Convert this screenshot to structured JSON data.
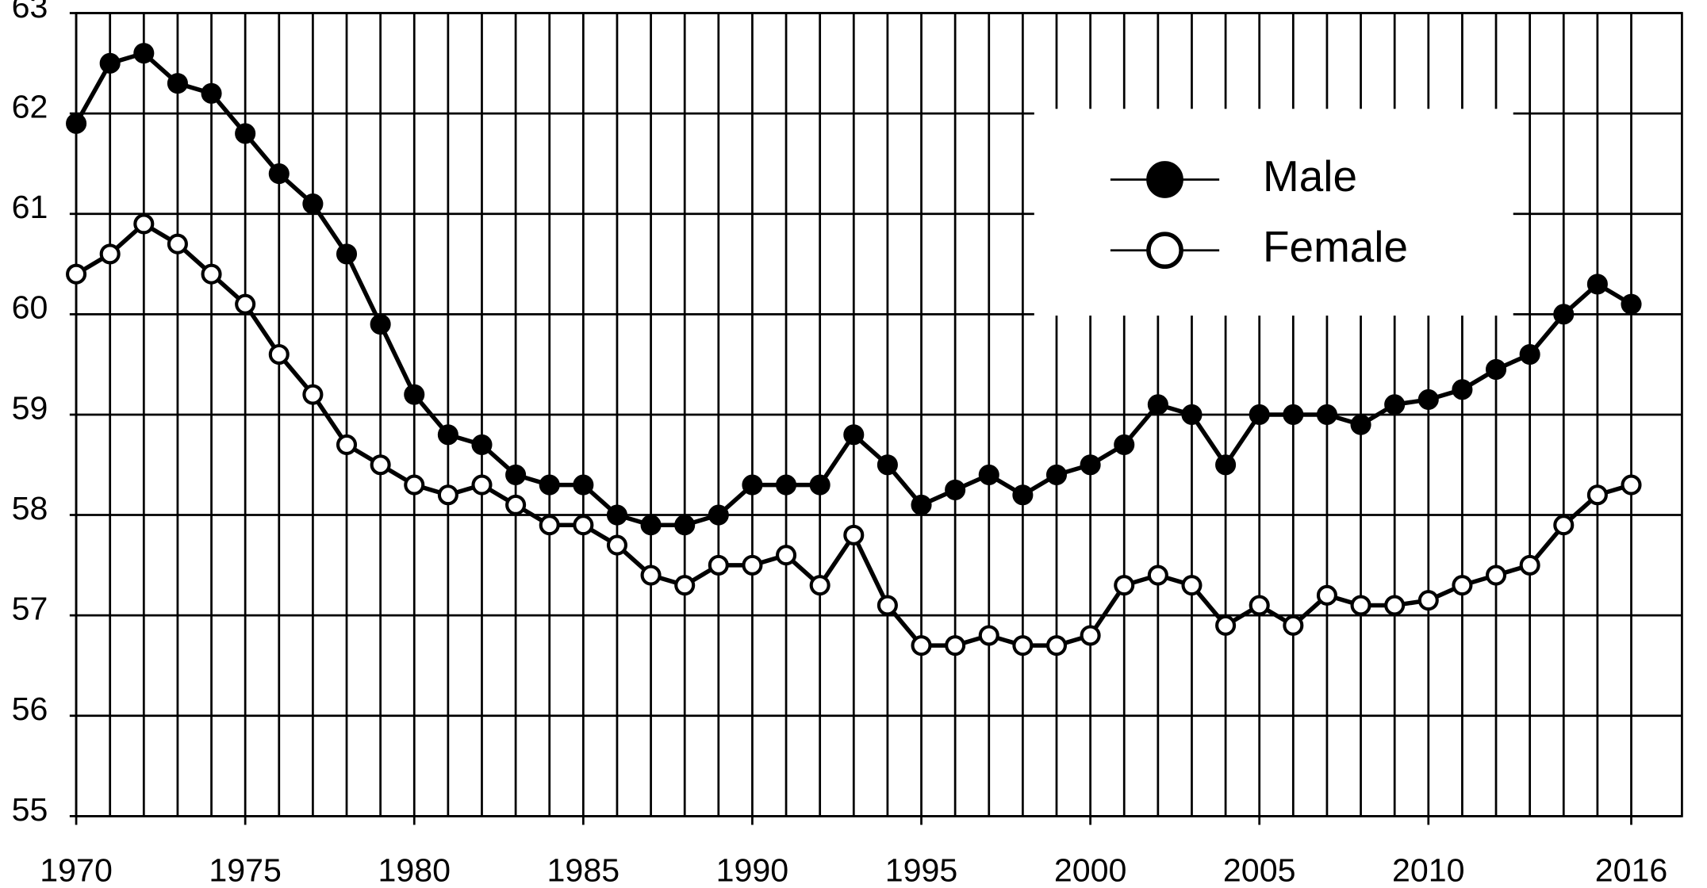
{
  "chart_data": {
    "type": "line",
    "x": [
      1970,
      1971,
      1972,
      1973,
      1974,
      1975,
      1976,
      1977,
      1978,
      1979,
      1980,
      1981,
      1982,
      1983,
      1984,
      1985,
      1986,
      1987,
      1988,
      1989,
      1990,
      1991,
      1992,
      1993,
      1994,
      1995,
      1996,
      1997,
      1998,
      1999,
      2000,
      2001,
      2002,
      2003,
      2004,
      2005,
      2006,
      2007,
      2008,
      2009,
      2010,
      2011,
      2012,
      2013,
      2014,
      2015,
      2016
    ],
    "series": [
      {
        "name": "Male",
        "color": "#000000",
        "values": [
          61.9,
          62.5,
          62.6,
          62.3,
          62.2,
          61.8,
          61.4,
          61.1,
          60.6,
          59.9,
          59.2,
          58.8,
          58.7,
          58.4,
          58.3,
          58.3,
          58.0,
          57.9,
          57.9,
          58.0,
          58.3,
          58.3,
          58.3,
          58.8,
          58.5,
          58.1,
          58.25,
          58.4,
          58.2,
          58.4,
          58.5,
          58.7,
          59.1,
          59.0,
          58.5,
          59.0,
          59.0,
          59.0,
          58.9,
          59.1,
          59.15,
          59.25,
          59.45,
          59.6,
          60.0,
          60.3,
          60.1
        ]
      },
      {
        "name": "Female",
        "color": "#ffffff",
        "values": [
          60.4,
          60.6,
          60.9,
          60.7,
          60.4,
          60.1,
          59.6,
          59.2,
          58.7,
          58.5,
          58.3,
          58.2,
          58.3,
          58.1,
          57.9,
          57.9,
          57.7,
          57.4,
          57.3,
          57.5,
          57.5,
          57.6,
          57.3,
          57.8,
          57.1,
          56.7,
          56.7,
          56.8,
          56.7,
          56.7,
          56.8,
          57.3,
          57.4,
          57.3,
          56.9,
          57.1,
          56.9,
          57.2,
          57.1,
          57.1,
          57.15,
          57.3,
          57.4,
          57.5,
          57.9,
          58.2,
          58.3
        ]
      }
    ],
    "xlim": [
      1970,
      2017.5
    ],
    "xticks": [
      1970,
      1975,
      1980,
      1985,
      1990,
      1995,
      2000,
      2005,
      2010,
      2016
    ],
    "ylim": [
      55,
      63
    ],
    "yticks": [
      55,
      56,
      57,
      58,
      59,
      60,
      61,
      62,
      63
    ],
    "grid": true,
    "legend": "upper right"
  }
}
